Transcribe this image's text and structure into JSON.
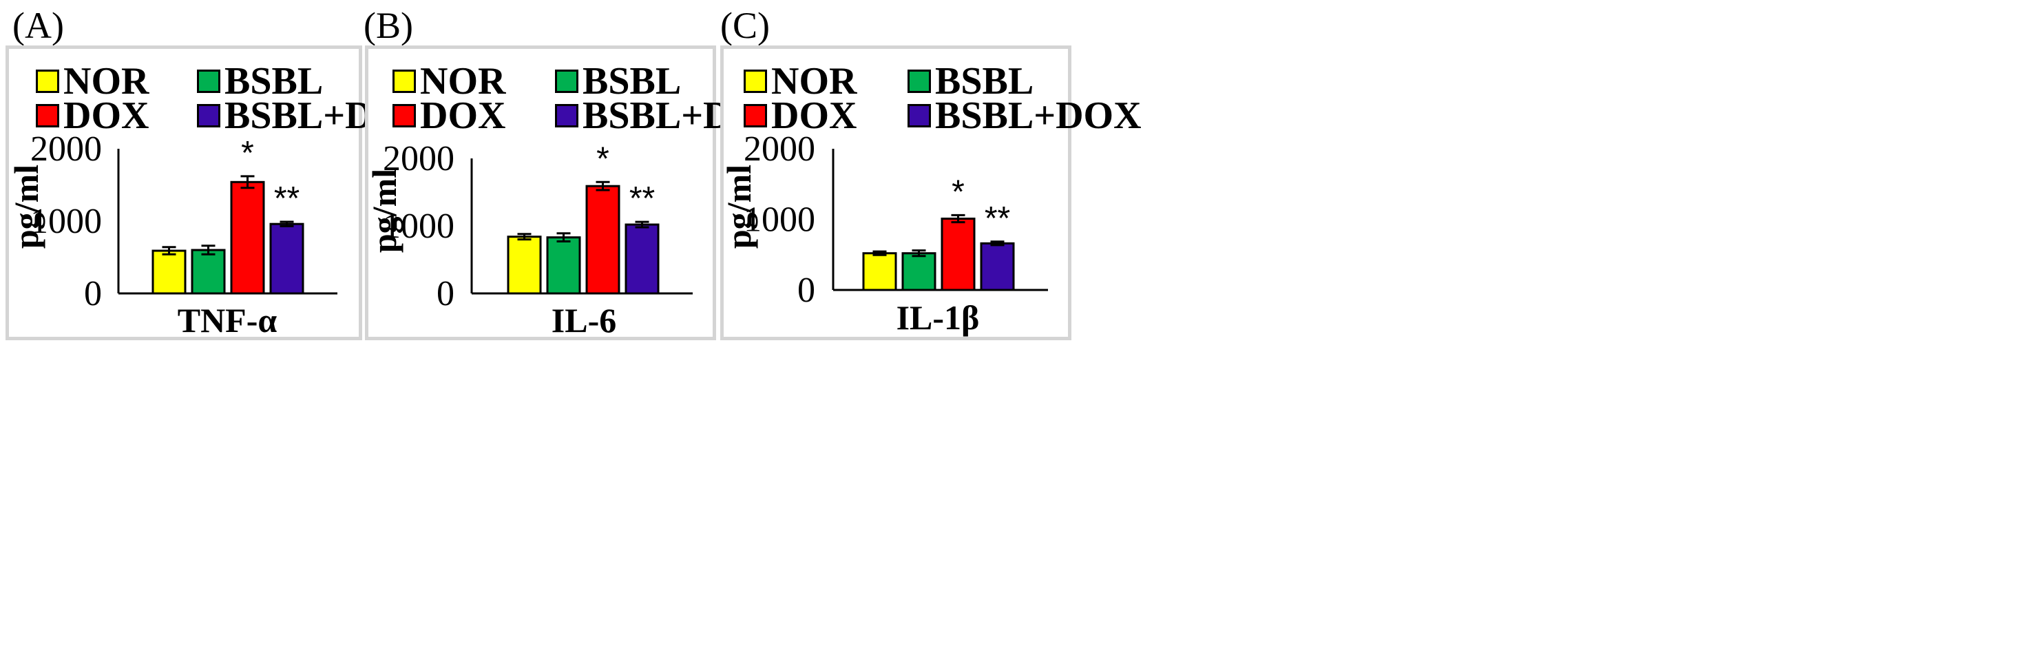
{
  "legend": [
    {
      "name": "NOR",
      "color": "#ffff00"
    },
    {
      "name": "BSBL",
      "color": "#00b050"
    },
    {
      "name": "DOX",
      "color": "#ff0000"
    },
    {
      "name": "BSBL+DOX",
      "color": "#3b0aa8"
    }
  ],
  "chart_data": [
    {
      "panel": "(A)",
      "type": "bar",
      "categories": [
        "NOR",
        "BSBL",
        "DOX",
        "BSBL+DOX"
      ],
      "values": [
        590,
        600,
        1540,
        960
      ],
      "errors": [
        50,
        60,
        80,
        30
      ],
      "significance": [
        "",
        "",
        "*",
        "**"
      ],
      "xlabel": "TNF-α",
      "ylabel": "pg/ml",
      "yticks": [
        "0",
        "1000",
        "2000"
      ],
      "ylim": [
        0,
        2000
      ]
    },
    {
      "panel": "(B)",
      "type": "bar",
      "categories": [
        "NOR",
        "BSBL",
        "DOX",
        "BSBL+DOX"
      ],
      "values": [
        840,
        830,
        1590,
        1020
      ],
      "errors": [
        40,
        60,
        60,
        40
      ],
      "significance": [
        "",
        "",
        "*",
        "**"
      ],
      "xlabel": "IL-6",
      "ylabel": "pg/ml",
      "yticks": [
        "0",
        "1000",
        "2000"
      ],
      "ylim": [
        0,
        2000
      ]
    },
    {
      "panel": "(C)",
      "type": "bar",
      "categories": [
        "NOR",
        "BSBL",
        "DOX",
        "BSBL+DOX"
      ],
      "values": [
        520,
        520,
        1010,
        660
      ],
      "errors": [
        25,
        40,
        50,
        25
      ],
      "significance": [
        "",
        "",
        "*",
        "**"
      ],
      "xlabel": "IL-1β",
      "ylabel": "pg/ml",
      "yticks": [
        "0",
        "1000",
        "2000"
      ],
      "ylim": [
        0,
        2000
      ]
    }
  ]
}
